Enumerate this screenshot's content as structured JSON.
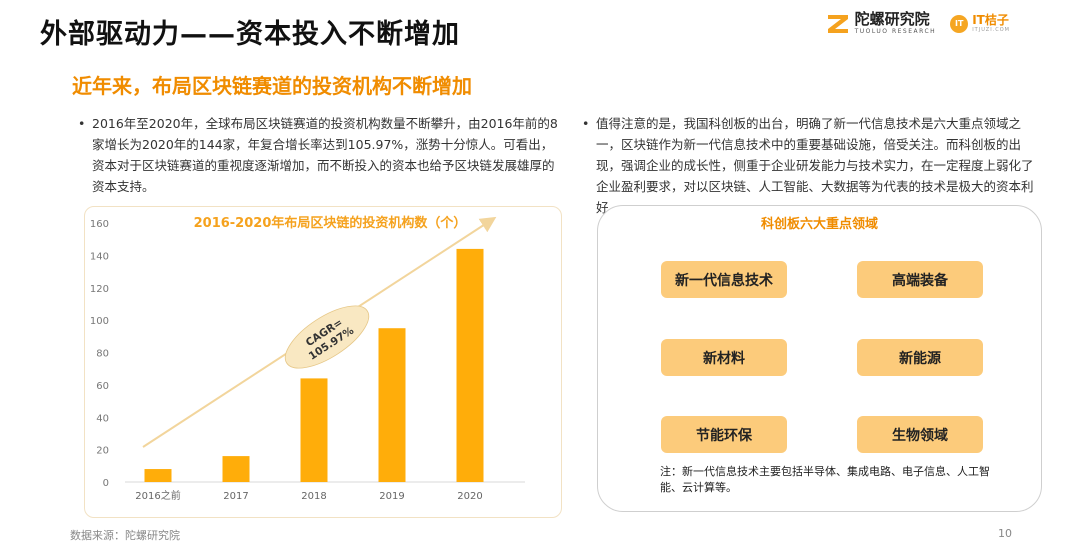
{
  "header": {
    "title": "外部驱动力——资本投入不断增加",
    "subtitle": "近年来，布局区块链赛道的投资机构不断增加"
  },
  "logos": {
    "tuoluo_name": "陀螺研究院",
    "tuoluo_sub": "TUOLUO RESEARCH",
    "itjuzi_mark": "IT",
    "itjuzi_name": "IT桔子",
    "itjuzi_sub": "ITJUZI.COM"
  },
  "left_bullet": {
    "marker": "•",
    "text": "2016年至2020年，全球布局区块链赛道的投资机构数量不断攀升，由2016年前的8家增长为2020年的144家，年复合增长率达到105.97%，涨势十分惊人。可看出，资本对于区块链赛道的重视度逐渐增加，而不断投入的资本也给予区块链发展雄厚的资本支持。"
  },
  "right_bullet": {
    "marker": "•",
    "text": "值得注意的是，我国科创板的出台，明确了新一代信息技术是六大重点领域之一，区块链作为新一代信息技术中的重要基础设施，倍受关注。而科创板的出现，强调企业的成长性，侧重于企业研发能力与技术实力，在一定程度上弱化了企业盈利要求，对以区块链、人工智能、大数据等为代表的技术是极大的资本利好。"
  },
  "chart_data": {
    "type": "bar",
    "title": "2016-2020年布局区块链的投资机构数（个）",
    "categories": [
      "2016之前",
      "2017",
      "2018",
      "2019",
      "2020"
    ],
    "values": [
      8,
      16,
      64,
      95,
      144
    ],
    "ylim": [
      0,
      160
    ],
    "yticks": [
      0,
      20,
      40,
      60,
      80,
      100,
      120,
      140,
      160
    ],
    "annotation": {
      "line1": "CAGR=",
      "line2": "105.97%"
    },
    "colors": {
      "bar": "#FFAD0A",
      "title": "#F5A21E",
      "arrow": "#F2D59C",
      "annotation_bg": "#F9E8C2"
    },
    "grid": false,
    "legend": "none"
  },
  "panel": {
    "title": "科创板六大重点领域",
    "areas": [
      "新一代信息技术",
      "高端装备",
      "新材料",
      "新能源",
      "节能环保",
      "生物领域"
    ],
    "note": "注：新一代信息技术主要包括半导体、集成电路、电子信息、人工智能、云计算等。"
  },
  "footer": {
    "source": "数据来源：陀螺研究院",
    "page": "10"
  },
  "colors": {
    "accent": "#F08C00",
    "area_bg": "#FCCB7B"
  }
}
